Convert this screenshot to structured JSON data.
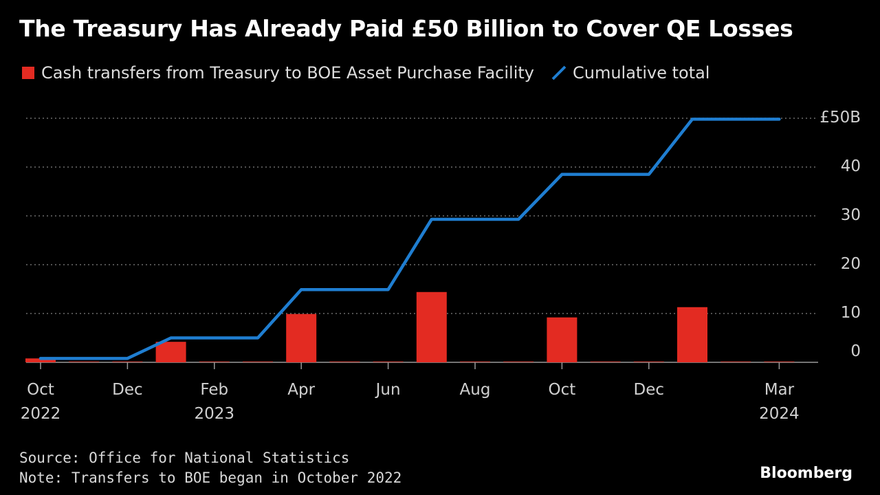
{
  "title": "The Treasury Has Already Paid £50 Billion to Cover QE Losses",
  "legend": {
    "bar_label": "Cash transfers from Treasury to BOE Asset Purchase Facility",
    "line_label": "Cumulative total"
  },
  "footer": {
    "source": "Source: Office for National Statistics",
    "note": "Note: Transfers to BOE began in October 2022"
  },
  "brand": "Bloomberg",
  "chart_data": {
    "type": "bar+line",
    "title": "The Treasury Has Already Paid £50 Billion to Cover QE Losses",
    "ylim": [
      -2,
      50
    ],
    "grid": true,
    "colors": {
      "bar": "#e32b22",
      "line": "#1f7ed1",
      "grid": "#6e6e6e"
    },
    "y_ticks": [
      {
        "value": 0,
        "label": "0"
      },
      {
        "value": 10,
        "label": "10"
      },
      {
        "value": 20,
        "label": "20"
      },
      {
        "value": 30,
        "label": "30"
      },
      {
        "value": 40,
        "label": "40"
      },
      {
        "value": 50,
        "label": "£50B"
      }
    ],
    "x_months": [
      "2022-10",
      "2022-11",
      "2022-12",
      "2023-01",
      "2023-02",
      "2023-03",
      "2023-04",
      "2023-05",
      "2023-06",
      "2023-07",
      "2023-08",
      "2023-09",
      "2023-10",
      "2023-11",
      "2023-12",
      "2024-01",
      "2024-02",
      "2024-03"
    ],
    "x_ticks": [
      {
        "month": "2022-10",
        "label": "Oct",
        "year": "2022"
      },
      {
        "month": "2022-12",
        "label": "Dec",
        "year": ""
      },
      {
        "month": "2023-02",
        "label": "Feb",
        "year": "2023"
      },
      {
        "month": "2023-04",
        "label": "Apr",
        "year": ""
      },
      {
        "month": "2023-06",
        "label": "Jun",
        "year": ""
      },
      {
        "month": "2023-08",
        "label": "Aug",
        "year": ""
      },
      {
        "month": "2023-10",
        "label": "Oct",
        "year": ""
      },
      {
        "month": "2023-12",
        "label": "Dec",
        "year": ""
      },
      {
        "month": "2024-03",
        "label": "Mar",
        "year": "2024"
      }
    ],
    "series": [
      {
        "name": "Cash transfers from Treasury to BOE Asset Purchase Facility",
        "type": "bar",
        "values": [
          0.8,
          0,
          0,
          4.2,
          0,
          0,
          9.9,
          0,
          0,
          14.4,
          0,
          0,
          9.2,
          0,
          0,
          11.3,
          0,
          0
        ]
      },
      {
        "name": "Cumulative total",
        "type": "line",
        "values": [
          0.8,
          0.8,
          0.8,
          5.0,
          5.0,
          5.0,
          14.9,
          14.9,
          14.9,
          29.3,
          29.3,
          29.3,
          38.5,
          38.5,
          38.5,
          49.8,
          49.8,
          49.8
        ]
      }
    ]
  }
}
